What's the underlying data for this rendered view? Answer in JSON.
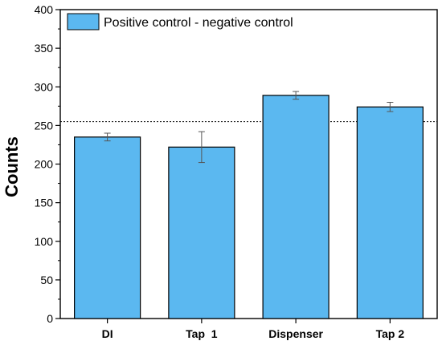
{
  "chart_data": {
    "type": "bar",
    "categories": [
      "DI",
      "Tap  1",
      "Dispenser",
      "Tap 2"
    ],
    "series": [
      {
        "name": "Positive control - negative control",
        "values": [
          235,
          222,
          289,
          274
        ],
        "error": [
          5,
          20,
          5,
          6
        ]
      }
    ],
    "reference_line": 255,
    "ylabel": "Counts",
    "xlabel": "",
    "ylim": [
      0,
      400
    ],
    "yticks": [
      0,
      50,
      100,
      150,
      200,
      250,
      300,
      350,
      400
    ],
    "legend_position": "top-left",
    "grid": false,
    "colors": {
      "bar_fill": "#5bb8f0",
      "bar_stroke": "#000000",
      "error_bar": "#555555",
      "reference_line": "#000000"
    }
  }
}
